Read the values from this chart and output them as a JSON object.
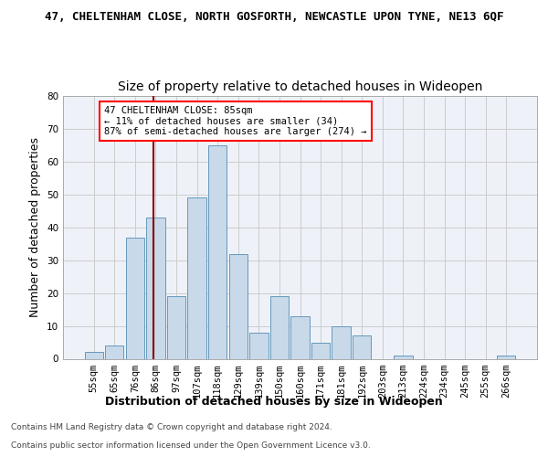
{
  "title": "47, CHELTENHAM CLOSE, NORTH GOSFORTH, NEWCASTLE UPON TYNE, NE13 6QF",
  "subtitle": "Size of property relative to detached houses in Wideopen",
  "xlabel": "Distribution of detached houses by size in Wideopen",
  "ylabel": "Number of detached properties",
  "footer_line1": "Contains HM Land Registry data © Crown copyright and database right 2024.",
  "footer_line2": "Contains public sector information licensed under the Open Government Licence v3.0.",
  "bin_labels": [
    "55sqm",
    "65sqm",
    "76sqm",
    "86sqm",
    "97sqm",
    "107sqm",
    "118sqm",
    "129sqm",
    "139sqm",
    "150sqm",
    "160sqm",
    "171sqm",
    "181sqm",
    "192sqm",
    "203sqm",
    "213sqm",
    "224sqm",
    "234sqm",
    "245sqm",
    "255sqm",
    "266sqm"
  ],
  "bar_values": [
    2,
    4,
    37,
    43,
    19,
    49,
    65,
    32,
    8,
    19,
    13,
    5,
    10,
    7,
    0,
    1,
    0,
    0,
    0,
    0,
    1
  ],
  "bar_color": "#c8d9ea",
  "bar_edge_color": "#6699bb",
  "annotation_text": "47 CHELTENHAM CLOSE: 85sqm\n← 11% of detached houses are smaller (34)\n87% of semi-detached houses are larger (274) →",
  "annotation_box_color": "white",
  "annotation_box_edge_color": "red",
  "vline_color": "#8b0000",
  "ylim": [
    0,
    80
  ],
  "yticks": [
    0,
    10,
    20,
    30,
    40,
    50,
    60,
    70,
    80
  ],
  "grid_color": "#cccccc",
  "bg_color": "#eef2f8",
  "title_fontsize": 9,
  "subtitle_fontsize": 10,
  "ylabel_fontsize": 9,
  "xlabel_fontsize": 9,
  "tick_fontsize": 7.5,
  "annotation_fontsize": 7.5,
  "footer_fontsize": 6.5
}
